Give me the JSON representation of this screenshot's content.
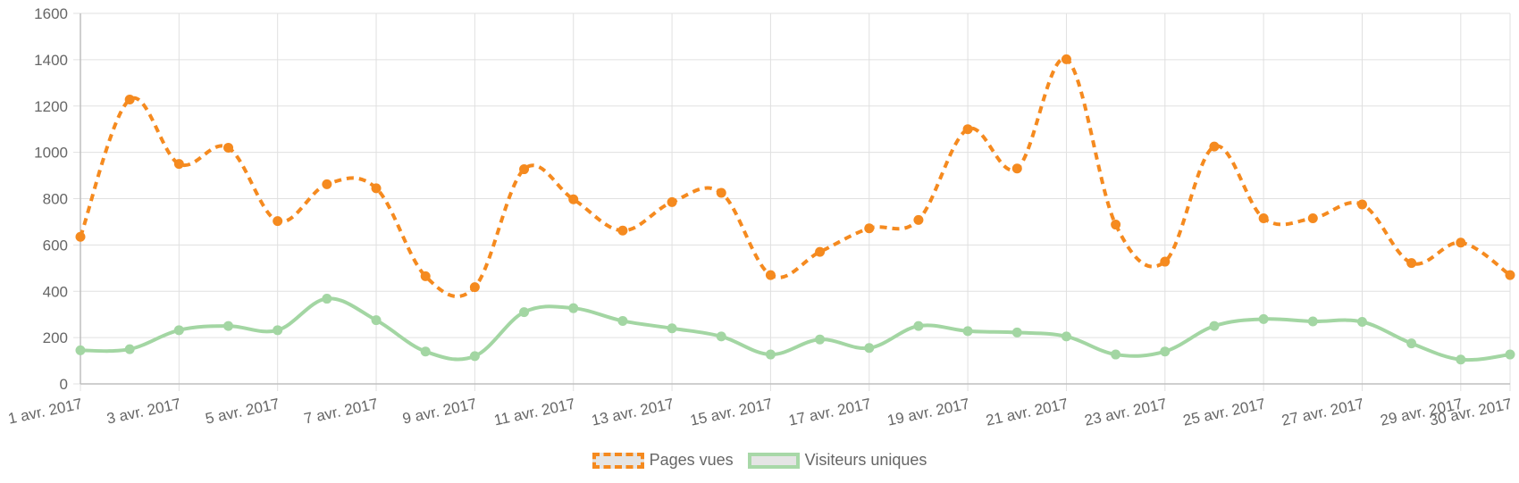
{
  "colors": {
    "pages": "#f58a1f",
    "visitors": "#a3d6a3",
    "grid": "#e0e0e0",
    "axis": "#bfbfbf"
  },
  "chart_data": {
    "type": "line",
    "x": [
      "1 avr. 2017",
      "2 avr. 2017",
      "3 avr. 2017",
      "4 avr. 2017",
      "5 avr. 2017",
      "6 avr. 2017",
      "7 avr. 2017",
      "8 avr. 2017",
      "9 avr. 2017",
      "10 avr. 2017",
      "11 avr. 2017",
      "12 avr. 2017",
      "13 avr. 2017",
      "14 avr. 2017",
      "15 avr. 2017",
      "16 avr. 2017",
      "17 avr. 2017",
      "18 avr. 2017",
      "19 avr. 2017",
      "20 avr. 2017",
      "21 avr. 2017",
      "22 avr. 2017",
      "23 avr. 2017",
      "24 avr. 2017",
      "25 avr. 2017",
      "26 avr. 2017",
      "27 avr. 2017",
      "28 avr. 2017",
      "29 avr. 2017",
      "30 avr. 2017"
    ],
    "tick_labels": [
      "1 avr. 2017",
      "3 avr. 2017",
      "5 avr. 2017",
      "7 avr. 2017",
      "9 avr. 2017",
      "11 avr. 2017",
      "13 avr. 2017",
      "15 avr. 2017",
      "17 avr. 2017",
      "19 avr. 2017",
      "21 avr. 2017",
      "23 avr. 2017",
      "25 avr. 2017",
      "27 avr. 2017",
      "29 avr. 2017",
      "30 avr. 2017"
    ],
    "series": [
      {
        "name": "Pages vues",
        "values": [
          635,
          1228,
          950,
          1020,
          703,
          862,
          845,
          465,
          418,
          927,
          797,
          662,
          785,
          825,
          470,
          570,
          672,
          708,
          1100,
          930,
          1402,
          688,
          528,
          1025,
          715,
          715,
          775,
          522,
          610,
          470
        ]
      },
      {
        "name": "Visiteurs uniques",
        "values": [
          145,
          150,
          232,
          250,
          232,
          368,
          275,
          140,
          120,
          310,
          327,
          272,
          240,
          205,
          127,
          192,
          155,
          250,
          228,
          222,
          205,
          127,
          140,
          250,
          280,
          270,
          268,
          175,
          105,
          127
        ]
      }
    ],
    "ylim": [
      0,
      1600
    ],
    "yticks": [
      0,
      200,
      400,
      600,
      800,
      1000,
      1200,
      1400,
      1600
    ],
    "grid": true,
    "legend": "bottom"
  }
}
